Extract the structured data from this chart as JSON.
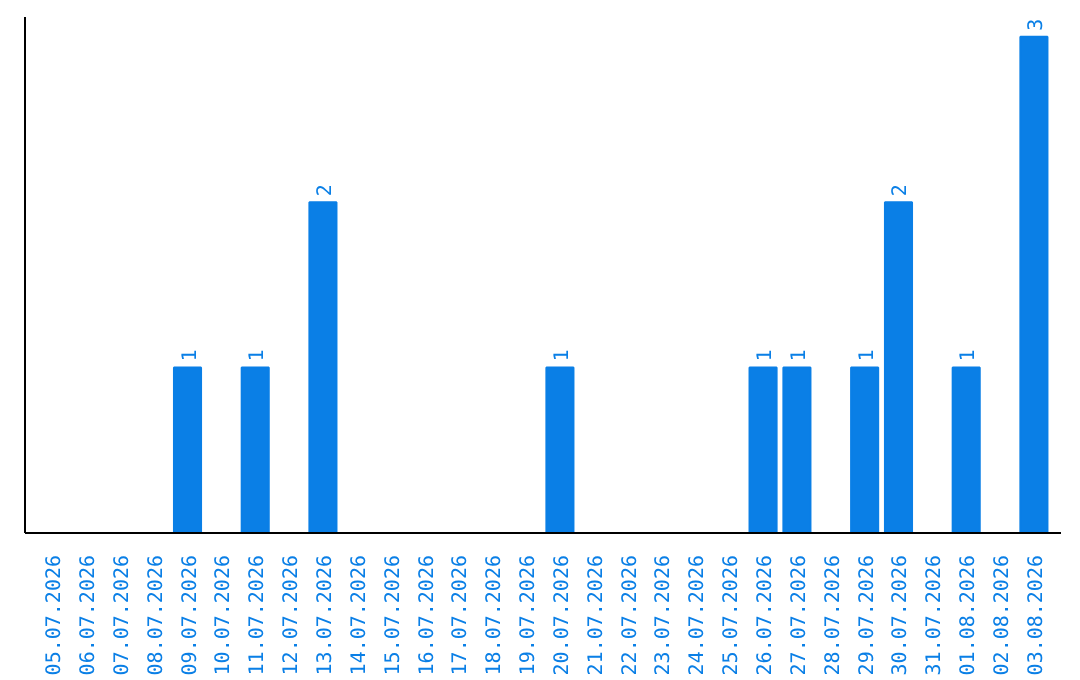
{
  "chart_data": {
    "type": "bar",
    "categories": [
      "05.07.2026",
      "06.07.2026",
      "07.07.2026",
      "08.07.2026",
      "09.07.2026",
      "10.07.2026",
      "11.07.2026",
      "12.07.2026",
      "13.07.2026",
      "14.07.2026",
      "15.07.2026",
      "16.07.2026",
      "17.07.2026",
      "18.07.2026",
      "19.07.2026",
      "20.07.2026",
      "21.07.2026",
      "22.07.2026",
      "23.07.2026",
      "24.07.2026",
      "25.07.2026",
      "26.07.2026",
      "27.07.2026",
      "28.07.2026",
      "29.07.2026",
      "30.07.2026",
      "31.07.2026",
      "01.08.2026",
      "02.08.2026",
      "03.08.2026"
    ],
    "values": [
      0,
      0,
      0,
      0,
      1,
      0,
      1,
      0,
      2,
      0,
      0,
      0,
      0,
      0,
      0,
      1,
      0,
      0,
      0,
      0,
      0,
      1,
      1,
      0,
      1,
      2,
      0,
      1,
      0,
      3
    ],
    "value_labels": [
      null,
      null,
      null,
      null,
      "1",
      null,
      "1",
      null,
      "2",
      null,
      null,
      null,
      null,
      null,
      null,
      "1",
      null,
      null,
      null,
      null,
      null,
      "1",
      "1",
      null,
      "1",
      "2",
      null,
      "1",
      null,
      "3"
    ],
    "color": "#0a7fe6",
    "tick_labels": "x"
  }
}
